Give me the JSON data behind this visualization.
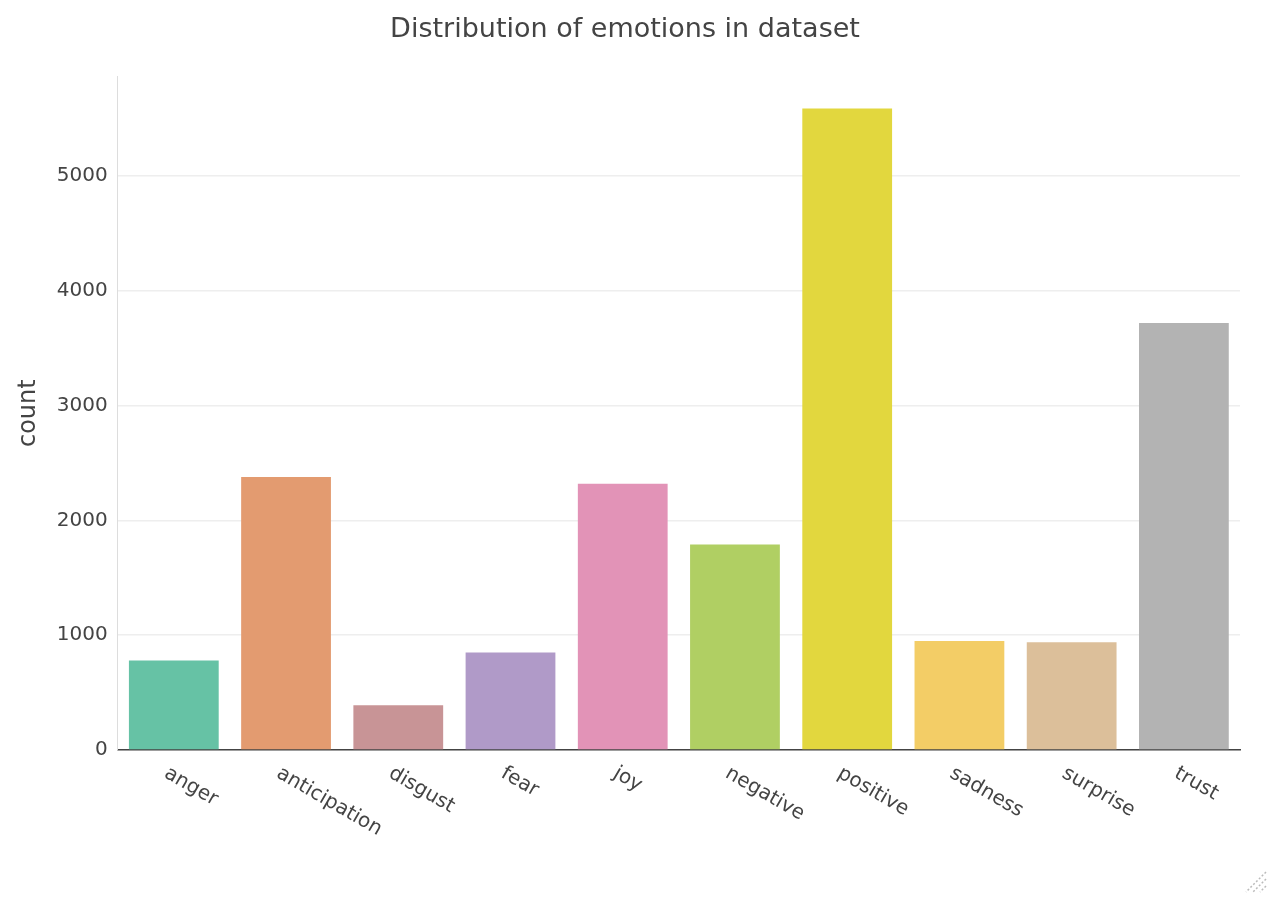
{
  "chart_data": {
    "type": "bar",
    "title": "Distribution of emotions in dataset",
    "ylabel": "count",
    "categories": [
      "anger",
      "anticipation",
      "disgust",
      "fear",
      "joy",
      "negative",
      "positive",
      "sadness",
      "surprise",
      "trust"
    ],
    "values": [
      780,
      2380,
      390,
      850,
      2320,
      1790,
      5590,
      950,
      940,
      3720
    ],
    "colors": [
      "#66c2a5",
      "#e39b70",
      "#c89496",
      "#b09ac8",
      "#e293b7",
      "#b0cf63",
      "#e2d73e",
      "#f3cd66",
      "#dcbf9a",
      "#b3b3b3"
    ],
    "ylim": [
      0,
      5870
    ],
    "yticks": [
      0,
      1000,
      2000,
      3000,
      4000,
      5000
    ],
    "grid": "y",
    "legend": false
  }
}
